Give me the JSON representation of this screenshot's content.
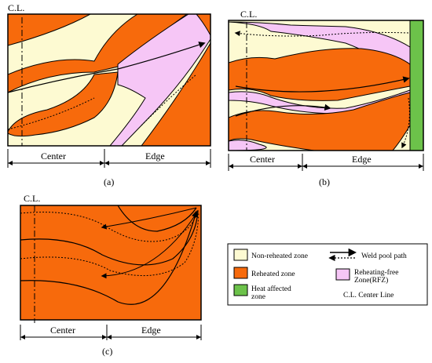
{
  "colors": {
    "non_reheated": "#FDFAD2",
    "reheated": "#F76A0C",
    "rfz": "#F6C6F6",
    "haz": "#6CC24A",
    "outline": "#000000"
  },
  "panel_a": {
    "cl_label": "C.L.",
    "center_label": "Center",
    "edge_label": "Edge",
    "caption": "(a)"
  },
  "panel_b": {
    "cl_label": "C.L.",
    "center_label": "Center",
    "edge_label": "Edge",
    "caption": "(b)"
  },
  "panel_c": {
    "cl_label": "C.L.",
    "center_label": "Center",
    "edge_label": "Edge",
    "caption": "(c)"
  },
  "legend": {
    "non_reheated": "Non-reheated zone",
    "reheated": "Reheated zone",
    "haz_line1": "Heat affected",
    "haz_line2": "zone",
    "weld_path": "Weld pool path",
    "rfz_line1": "Reheating-free",
    "rfz_line2": "Zone(RFZ)",
    "center_line": "C.L. Center Line"
  }
}
